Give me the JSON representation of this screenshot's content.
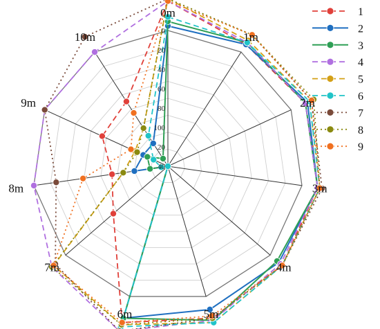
{
  "chart_data": {
    "type": "radar",
    "axes": [
      "0m",
      "1m",
      "2m",
      "3m",
      "4m",
      "5m",
      "6m",
      "7m",
      "8m",
      "9m",
      "10m"
    ],
    "radial_ticks": [
      "0",
      "20",
      "40",
      "60",
      "80",
      "100",
      "20",
      "40"
    ],
    "radial_range": [
      100,
      40
    ],
    "grid": true,
    "legend_position": "right",
    "series": [
      {
        "name": "1",
        "color": "#e0403a",
        "line": "dashed",
        "values": [
          27,
          36,
          33,
          33,
          33,
          30,
          28,
          68,
          75,
          68,
          66
        ]
      },
      {
        "name": "2",
        "color": "#1f6fc0",
        "line": "solid",
        "values": [
          38,
          36,
          32,
          33,
          35,
          34,
          30,
          100,
          85,
          88,
          88
        ]
      },
      {
        "name": "3",
        "color": "#2e9f55",
        "line": "solid",
        "values": [
          36,
          35,
          33,
          33,
          36,
          29,
          30,
          100,
          92,
          90,
          96
        ]
      },
      {
        "name": "4",
        "color": "#b070e0",
        "line": "dashed",
        "values": [
          27,
          35,
          33,
          33,
          34,
          29,
          24,
          32,
          40,
          40,
          40
        ]
      },
      {
        "name": "5",
        "color": "#d4a017",
        "line": "dashed",
        "values": [
          26,
          34,
          31,
          32,
          33,
          28,
          27,
          33,
          80,
          84,
          80
        ]
      },
      {
        "name": "6",
        "color": "#20c4c8",
        "line": "dashed",
        "values": [
          34,
          35,
          31,
          32,
          33,
          28,
          26,
          100,
          97,
          93,
          84
        ]
      },
      {
        "name": "7",
        "color": "#7a4a3a",
        "line": "dotted",
        "values": [
          26,
          31,
          30,
          31,
          33,
          30,
          24,
          34,
          50,
          40,
          32
        ]
      },
      {
        "name": "8",
        "color": "#8a8a10",
        "line": "dotted",
        "values": [
          26,
          31,
          29,
          32,
          33,
          30,
          27,
          32,
          80,
          85,
          80
        ]
      },
      {
        "name": "9",
        "color": "#f07020",
        "line": "dotted",
        "values": [
          27,
          31,
          30,
          32,
          33,
          31,
          28,
          33,
          62,
          82,
          72
        ]
      }
    ]
  }
}
